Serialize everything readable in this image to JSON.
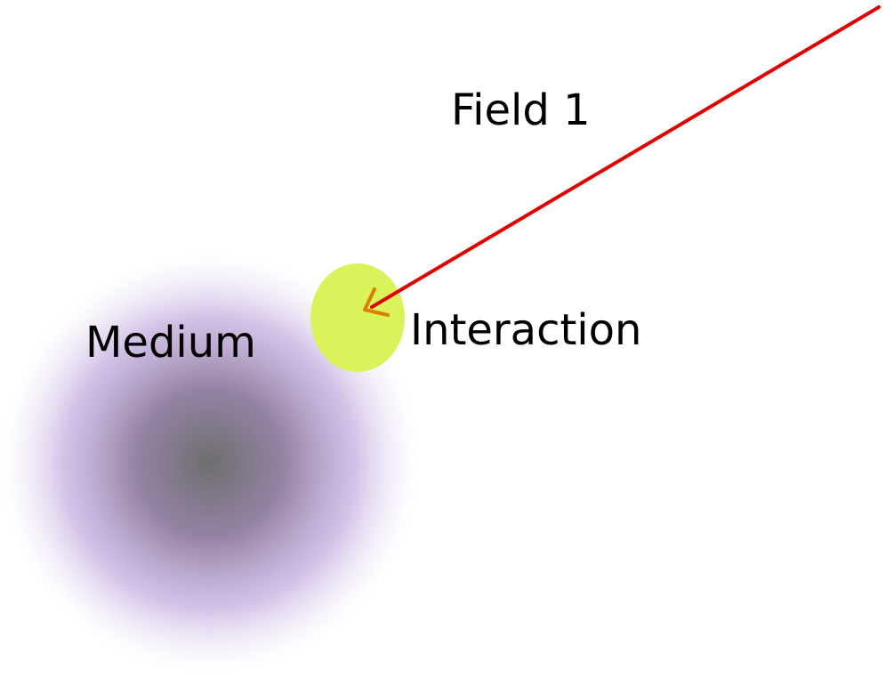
{
  "labels": {
    "field": "Field 1",
    "interaction": "Interaction",
    "medium": "Medium"
  },
  "colors": {
    "background": "#ffffff",
    "field_ray": "#e00000",
    "arrowhead": "#d98000",
    "interaction_fill": "#dcf25a",
    "medium_center": "#707070",
    "medium_mid": "#a58cbf",
    "medium_edge": "#e8dcf5",
    "text": "#000000"
  },
  "icons": {
    "arrow": "arrow-pointing-down-left"
  }
}
